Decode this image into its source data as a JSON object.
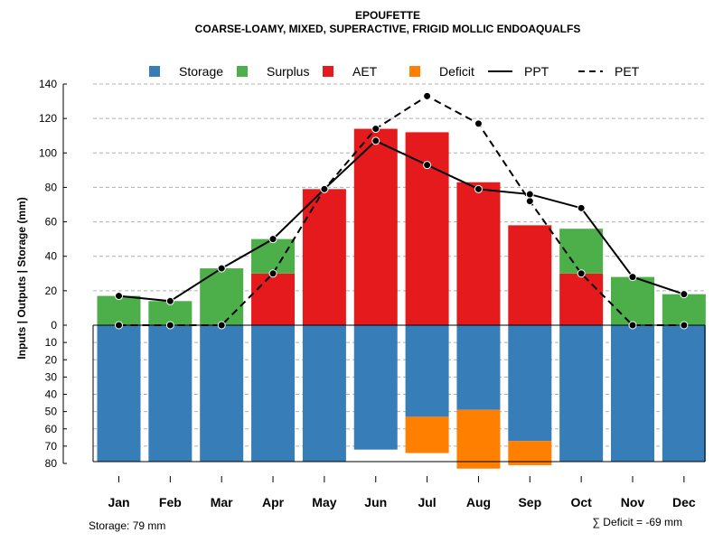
{
  "chart_data": {
    "type": "bar",
    "title": "EPOUFETTE",
    "subtitle": "COARSE-LOAMY, MIXED, SUPERACTIVE, FRIGID MOLLIC ENDOAQUALFS",
    "ylabel": "Inputs | Outputs | Storage    (mm)",
    "categories": [
      "Jan",
      "Feb",
      "Mar",
      "Apr",
      "May",
      "Jun",
      "Jul",
      "Aug",
      "Sep",
      "Oct",
      "Nov",
      "Dec"
    ],
    "ylim_upper": [
      0,
      140
    ],
    "ylim_lower": [
      0,
      80
    ],
    "upper_ticks": [
      0,
      20,
      40,
      60,
      80,
      100,
      120,
      140
    ],
    "lower_ticks": [
      10,
      20,
      30,
      40,
      50,
      60,
      70,
      80
    ],
    "series": [
      {
        "name": "Storage",
        "color": "#377EB8",
        "values": [
          79,
          79,
          79,
          79,
          79,
          72,
          53,
          49,
          67,
          79,
          79,
          79
        ]
      },
      {
        "name": "Surplus",
        "color": "#4DAF4A",
        "values": [
          17,
          14,
          33,
          20,
          0,
          0,
          0,
          0,
          0,
          26,
          28,
          18
        ]
      },
      {
        "name": "AET",
        "color": "#E41A1C",
        "values": [
          0,
          0,
          0,
          30,
          79,
          114,
          112,
          83,
          58,
          30,
          0,
          0
        ]
      },
      {
        "name": "Deficit",
        "color": "#FF7F00",
        "values": [
          0,
          0,
          0,
          0,
          0,
          0,
          21,
          34,
          14,
          0,
          0,
          0
        ]
      },
      {
        "name": "PPT",
        "color": "#000000",
        "style": "solid",
        "values": [
          17,
          14,
          33,
          50,
          79,
          107,
          93,
          79,
          76,
          68,
          28,
          18
        ]
      },
      {
        "name": "PET",
        "color": "#000000",
        "style": "dashed",
        "values": [
          0,
          0,
          0,
          30,
          79,
          114,
          133,
          117,
          72,
          30,
          0,
          0
        ]
      }
    ],
    "legend_position": "top",
    "grid": true
  },
  "footer": {
    "storage_label": "Storage: 79 mm",
    "deficit_label": "∑ Deficit = -69 mm"
  }
}
